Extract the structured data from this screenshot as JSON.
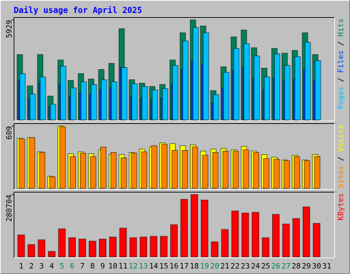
{
  "legend_separator": " / ",
  "chart_data": [
    {
      "type": "bar",
      "title": "Daily usage for April 2025",
      "ylim": [
        0,
        5929
      ],
      "yticks": [
        5929
      ],
      "series": [
        {
          "name": "Hits",
          "color": "#00805c",
          "values": [
            3872,
            2017,
            3872,
            1412,
            3549,
            2339,
            2743,
            2420,
            2985,
            3348,
            5405,
            2380,
            2178,
            1976,
            2097,
            3549,
            5163,
            5929,
            5566,
            1734,
            3146,
            4921,
            5324,
            4275,
            3065,
            4235,
            3953,
            4114,
            5163,
            3872,
            null
          ]
        },
        {
          "name": "Files",
          "color": "#0040ff",
          "values": [
            2300,
            1200,
            2200,
            800,
            2100,
            1400,
            1600,
            1500,
            1800,
            1900,
            3100,
            1400,
            1300,
            1200,
            1300,
            2100,
            3000,
            3500,
            3300,
            1000,
            1900,
            2900,
            3100,
            2500,
            1800,
            2500,
            2300,
            2400,
            3000,
            2300,
            null
          ]
        },
        {
          "name": "Pages",
          "color": "#00c0ff",
          "values": [
            2743,
            1533,
            2541,
            928,
            3187,
            1896,
            2259,
            2097,
            2380,
            2259,
            3106,
            2138,
            1976,
            1775,
            1855,
            3227,
            4679,
            5485,
            5163,
            1492,
            2824,
            4235,
            4517,
            3791,
            2541,
            3913,
            3227,
            3751,
            4598,
            3509,
            null
          ]
        }
      ]
    },
    {
      "type": "bar",
      "ylim": [
        0,
        609
      ],
      "yticks": [
        609
      ],
      "series": [
        {
          "name": "Visits",
          "color": "#ffff00",
          "values": [
            490,
            496,
            357,
            119,
            609,
            338,
            357,
            338,
            377,
            331,
            331,
            351,
            384,
            404,
            444,
            437,
            417,
            424,
            364,
            384,
            391,
            377,
            410,
            364,
            331,
            305,
            278,
            324,
            278,
            331,
            null
          ]
        },
        {
          "name": "Sites",
          "color": "#ff8000",
          "values": [
            483,
            496,
            351,
            113,
            602,
            311,
            344,
            311,
            404,
            351,
            298,
            344,
            357,
            417,
            430,
            371,
            371,
            404,
            324,
            351,
            364,
            364,
            377,
            351,
            291,
            285,
            271,
            311,
            271,
            311,
            null
          ]
        }
      ]
    },
    {
      "type": "bar",
      "ylim": [
        0,
        280704
      ],
      "yticks": [
        280704
      ],
      "categories": [
        "1",
        "2",
        "3",
        "4",
        "5",
        "6",
        "7",
        "8",
        "9",
        "10",
        "11",
        "12",
        "13",
        "14",
        "15",
        "16",
        "17",
        "18",
        "19",
        "20",
        "21",
        "22",
        "23",
        "24",
        "25",
        "26",
        "27",
        "28",
        "29",
        "30",
        "31"
      ],
      "category_colors": [
        "#000000",
        "#000000",
        "#000000",
        "#000000",
        "#00805c",
        "#00805c",
        "#000000",
        "#000000",
        "#000000",
        "#000000",
        "#000000",
        "#00805c",
        "#00805c",
        "#000000",
        "#000000",
        "#000000",
        "#000000",
        "#000000",
        "#00805c",
        "#00805c",
        "#000000",
        "#000000",
        "#000000",
        "#000000",
        "#000000",
        "#00805c",
        "#00805c",
        "#000000",
        "#000000",
        "#000000",
        "#000000"
      ],
      "series": [
        {
          "name": "KBytes",
          "color": "#ff0000",
          "values": [
            98710,
            55524,
            77116,
            24677,
            126475,
            86372,
            80204,
            70950,
            80204,
            89458,
            129560,
            86372,
            89458,
            92543,
            92543,
            144983,
            259118,
            280704,
            256033,
            67865,
            123390,
            206678,
            197424,
            200508,
            86372,
            191255,
            148068,
            172746,
            225190,
            151153,
            null
          ]
        }
      ]
    }
  ]
}
